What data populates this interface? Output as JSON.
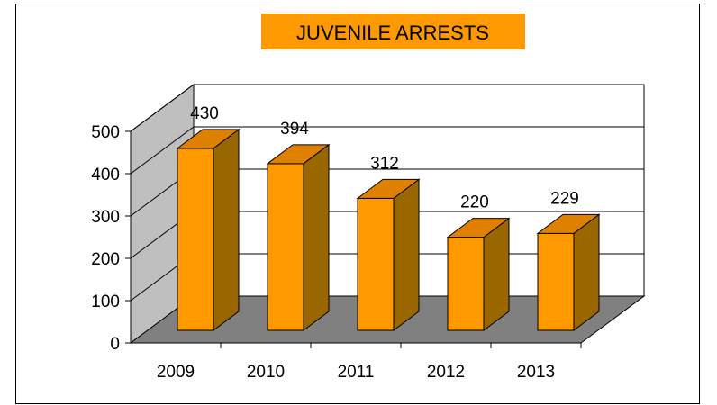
{
  "chart_data": {
    "type": "bar",
    "title": "JUVENILE ARRESTS",
    "categories": [
      "2009",
      "2010",
      "2011",
      "2012",
      "2013"
    ],
    "values": [
      430,
      394,
      312,
      220,
      229
    ],
    "ylim": [
      0,
      500
    ],
    "yticks": [
      0,
      100,
      200,
      300,
      400,
      500
    ],
    "grid": true,
    "style": "3d",
    "colors": {
      "bar_front": "#FF9900",
      "bar_top": "#E08000",
      "bar_side": "#996600",
      "floor": "#808080",
      "side_wall": "#BFBFBF",
      "title_background": "#FF9900"
    }
  }
}
